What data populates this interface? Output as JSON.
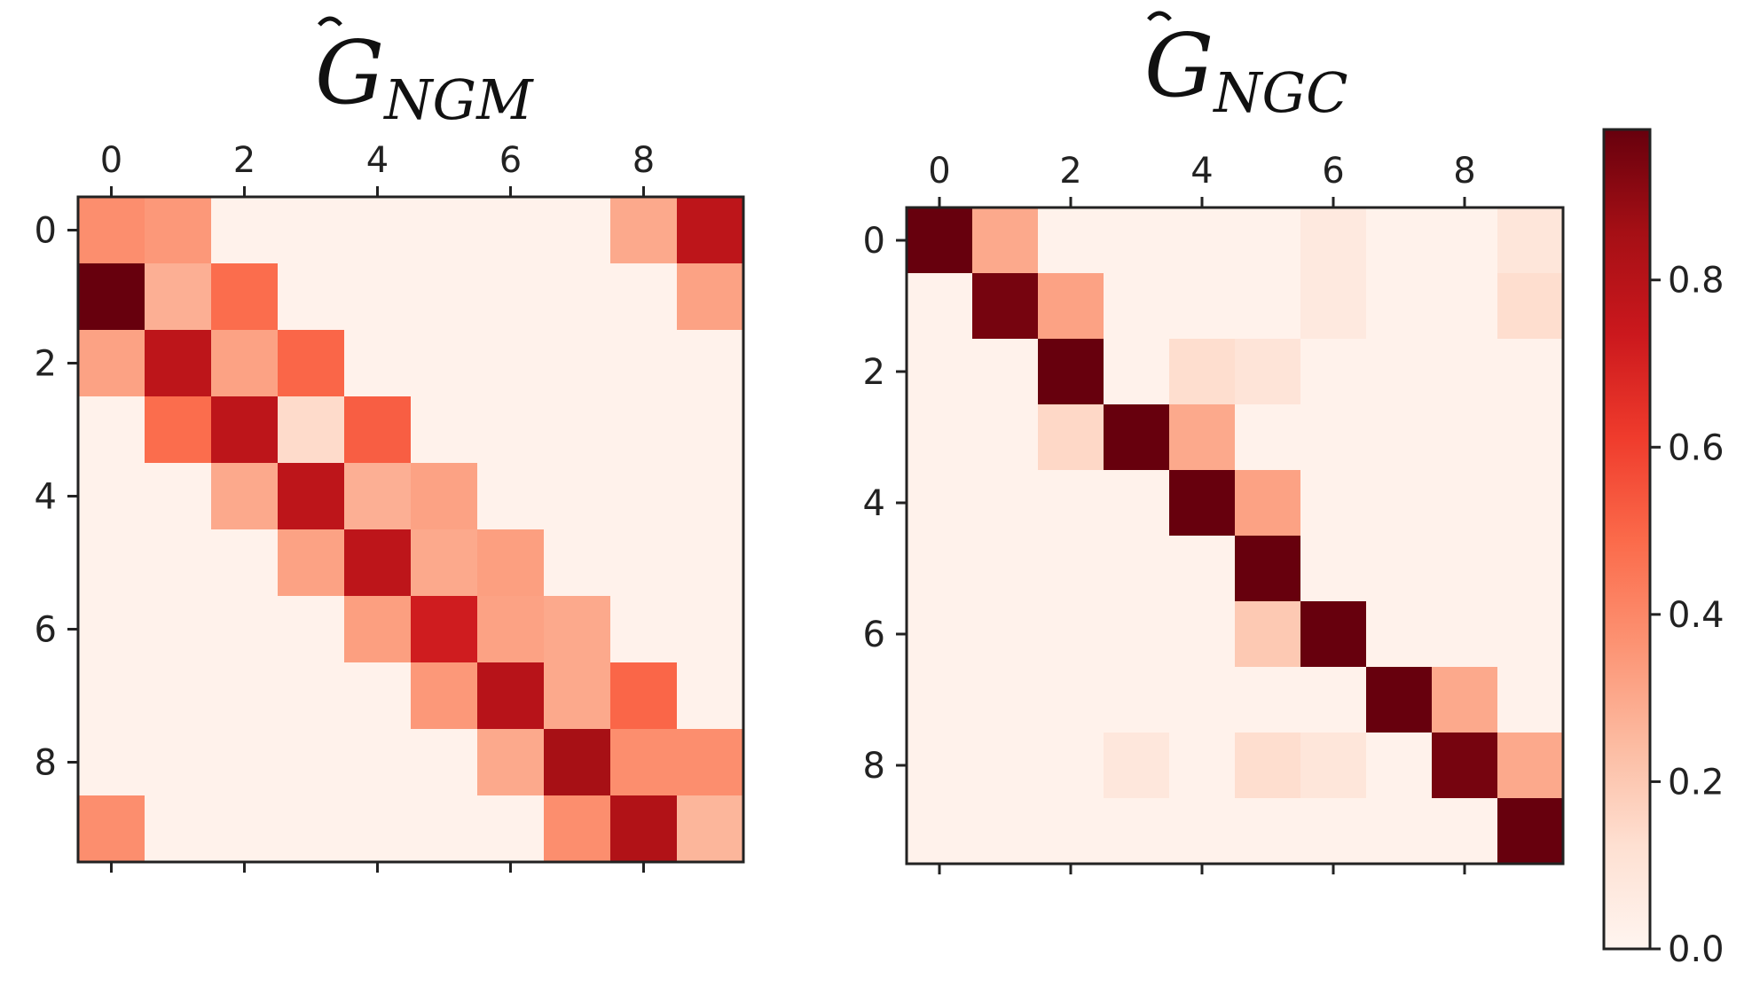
{
  "chart_data": [
    {
      "type": "heatmap",
      "title": "G",
      "title_subscript": "NGM",
      "title_accent": "hat",
      "x_ticks": [
        "0",
        "2",
        "4",
        "6",
        "8"
      ],
      "y_ticks": [
        "0",
        "2",
        "4",
        "6",
        "8"
      ],
      "x_axis_position": "top",
      "matrix": [
        [
          0.38,
          0.35,
          0.02,
          0.02,
          0.02,
          0.02,
          0.02,
          0.02,
          0.3,
          0.78
        ],
        [
          0.98,
          0.28,
          0.48,
          0.02,
          0.02,
          0.02,
          0.02,
          0.02,
          0.02,
          0.32
        ],
        [
          0.32,
          0.78,
          0.32,
          0.5,
          0.02,
          0.02,
          0.02,
          0.02,
          0.02,
          0.02
        ],
        [
          0.02,
          0.48,
          0.78,
          0.14,
          0.52,
          0.02,
          0.02,
          0.02,
          0.02,
          0.02
        ],
        [
          0.02,
          0.02,
          0.3,
          0.78,
          0.28,
          0.32,
          0.02,
          0.02,
          0.02,
          0.02
        ],
        [
          0.02,
          0.02,
          0.02,
          0.32,
          0.78,
          0.3,
          0.33,
          0.02,
          0.02,
          0.02
        ],
        [
          0.02,
          0.02,
          0.02,
          0.02,
          0.33,
          0.72,
          0.32,
          0.3,
          0.02,
          0.02
        ],
        [
          0.02,
          0.02,
          0.02,
          0.02,
          0.02,
          0.35,
          0.8,
          0.3,
          0.5,
          0.02
        ],
        [
          0.02,
          0.02,
          0.02,
          0.02,
          0.02,
          0.02,
          0.3,
          0.85,
          0.38,
          0.38
        ],
        [
          0.38,
          0.02,
          0.02,
          0.02,
          0.02,
          0.02,
          0.02,
          0.38,
          0.82,
          0.26
        ]
      ]
    },
    {
      "type": "heatmap",
      "title": "G",
      "title_subscript": "NGC",
      "title_accent": "hat",
      "x_ticks": [
        "0",
        "2",
        "4",
        "6",
        "8"
      ],
      "y_ticks": [
        "0",
        "2",
        "4",
        "6",
        "8"
      ],
      "x_axis_position": "top",
      "matrix": [
        [
          0.98,
          0.3,
          0.02,
          0.02,
          0.02,
          0.02,
          0.07,
          0.02,
          0.02,
          0.09
        ],
        [
          0.02,
          0.95,
          0.32,
          0.02,
          0.02,
          0.02,
          0.07,
          0.02,
          0.02,
          0.13
        ],
        [
          0.02,
          0.02,
          0.98,
          0.02,
          0.13,
          0.1,
          0.02,
          0.02,
          0.02,
          0.02
        ],
        [
          0.02,
          0.02,
          0.15,
          0.98,
          0.3,
          0.02,
          0.02,
          0.02,
          0.02,
          0.02
        ],
        [
          0.02,
          0.02,
          0.02,
          0.02,
          0.98,
          0.32,
          0.02,
          0.02,
          0.02,
          0.02
        ],
        [
          0.02,
          0.02,
          0.02,
          0.02,
          0.02,
          0.98,
          0.02,
          0.02,
          0.02,
          0.02
        ],
        [
          0.02,
          0.02,
          0.02,
          0.02,
          0.02,
          0.2,
          0.98,
          0.02,
          0.02,
          0.02
        ],
        [
          0.02,
          0.02,
          0.02,
          0.02,
          0.02,
          0.02,
          0.02,
          0.98,
          0.3,
          0.02
        ],
        [
          0.02,
          0.02,
          0.02,
          0.08,
          0.02,
          0.13,
          0.09,
          0.02,
          0.95,
          0.3
        ],
        [
          0.02,
          0.02,
          0.02,
          0.02,
          0.02,
          0.02,
          0.02,
          0.02,
          0.02,
          0.98
        ]
      ]
    }
  ],
  "colorbar": {
    "colormap": "Reds",
    "range": [
      0.0,
      0.98
    ],
    "ticks": [
      0.0,
      0.2,
      0.4,
      0.6,
      0.8
    ],
    "tick_labels": [
      "0.0",
      "0.2",
      "0.4",
      "0.6",
      "0.8"
    ],
    "colors": [
      "#fff5f0",
      "#fee0d2",
      "#fcbba1",
      "#fc9272",
      "#fb6a4a",
      "#ef3b2c",
      "#cb181d",
      "#a50f15",
      "#67000d"
    ]
  }
}
